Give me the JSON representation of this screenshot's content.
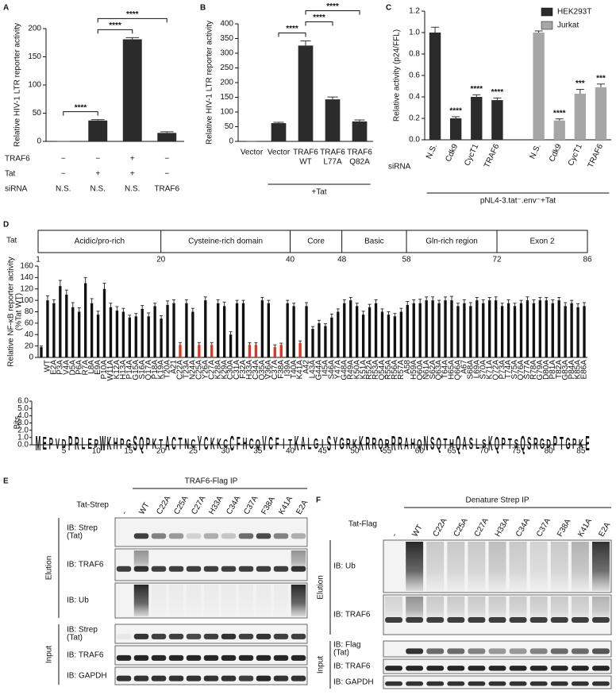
{
  "chart_data": [
    {
      "type": "bar",
      "panel": "A",
      "ylabel": "Relative HIV-1 LTR reporter activity",
      "values": [
        0,
        37,
        181,
        15
      ],
      "errors": [
        0,
        1.5,
        3,
        2
      ],
      "color": "#2b2b2b",
      "ylim": [
        0,
        200
      ],
      "yticks": [
        0,
        50,
        100,
        150,
        200
      ],
      "rows": [
        {
          "label": "TRAF6",
          "values": [
            "−",
            "−",
            "+",
            "−"
          ]
        },
        {
          "label": "Tat",
          "values": [
            "−",
            "+",
            "+",
            "−"
          ]
        },
        {
          "label": "siRNA",
          "values": [
            "N.S.",
            "N.S.",
            "N.S.",
            "TRAF6"
          ]
        }
      ],
      "significance": [
        {
          "from": 0,
          "to": 1,
          "label": "****"
        },
        {
          "from": 1,
          "to": 2,
          "label": "****"
        },
        {
          "from": 1,
          "to": 3,
          "label": "****"
        }
      ]
    },
    {
      "type": "bar",
      "panel": "B",
      "ylabel": "Relative HIV-1 LTR reporter activity",
      "categories": [
        [
          "Vector"
        ],
        [
          "Vector"
        ],
        [
          "TRAF6",
          "WT"
        ],
        [
          "TRAF6",
          "L77A"
        ],
        [
          "TRAF6",
          "Q82A"
        ]
      ],
      "values": [
        0,
        62,
        326,
        143,
        68
      ],
      "errors": [
        0,
        3,
        16,
        8,
        5
      ],
      "color": "#2b2b2b",
      "ylim": [
        0,
        400
      ],
      "yticks": [
        0,
        50,
        100,
        150,
        200,
        250,
        300,
        350,
        400
      ],
      "group_label": {
        "label": "+Tat",
        "from": 1,
        "to": 4
      },
      "significance": [
        {
          "from": 1,
          "to": 2,
          "label": "****"
        },
        {
          "from": 2,
          "to": 3,
          "label": "****"
        },
        {
          "from": 2,
          "to": 4,
          "label": "****"
        }
      ]
    },
    {
      "type": "bar",
      "panel": "C",
      "ylabel": "Relative activity (p24/FFL)",
      "categories": [
        "N.S.",
        "Cdk9",
        "CycT1",
        "TRAF6",
        "N.S.",
        "Cdk9",
        "CycT1",
        "TRAF6"
      ],
      "row_label": "siRNA",
      "series": [
        {
          "name": "HEK293T",
          "color": "#2b2b2b",
          "values": [
            1.0,
            0.2,
            0.4,
            0.37,
            null,
            null,
            null,
            null
          ],
          "errors": [
            0.05,
            0.015,
            0.02,
            0.02,
            null,
            null,
            null,
            null
          ],
          "labels": [
            null,
            "****",
            "****",
            "****",
            null,
            null,
            null,
            null
          ]
        },
        {
          "name": "Jurkat",
          "color": "#a6a6a6",
          "values": [
            null,
            null,
            null,
            null,
            1.0,
            0.18,
            0.43,
            0.49
          ],
          "errors": [
            null,
            null,
            null,
            null,
            0.015,
            0.015,
            0.04,
            0.03
          ],
          "labels": [
            null,
            null,
            null,
            null,
            null,
            "****",
            "***",
            "***"
          ]
        }
      ],
      "ylim": [
        0,
        1.2
      ],
      "yticks": [
        {
          "value": 0,
          "label": "0.0"
        },
        0.2,
        0.4,
        0.6,
        0.8,
        {
          "value": 1,
          "label": "1.0"
        },
        1.2
      ],
      "legend": "top-right",
      "group_label": {
        "label": "pNL4-3.tat⁻.env⁻+Tat",
        "from": 0,
        "to": 7
      }
    },
    {
      "type": "bar",
      "panel": "D",
      "ylabel": [
        "Relative NF-κB reporter activity",
        "(%Tat WT)"
      ],
      "color": "#111111",
      "highlight_color": "#e8301f",
      "highlight": [
        22,
        25,
        27,
        33,
        34,
        37,
        38,
        41
      ],
      "categories": [
        null,
        "WT",
        "E2A",
        "P3A",
        "V4A",
        "D5A",
        "P6A",
        "R7A",
        "L8A",
        "E9A",
        "P10A",
        "W11A",
        "K12A",
        "H13A",
        "P14A",
        "G15A",
        "S16A",
        "Q17A",
        "P18A",
        "K19A",
        "T20A",
        "A21",
        "C22A",
        "T23A",
        "N24A",
        "C25A",
        "Y26A",
        "C27A",
        "K28A",
        "K29A",
        "C30A",
        "C31A",
        "F32A",
        "H33A",
        "C34A",
        "Q35A",
        "V36A",
        "C37A",
        "F38A",
        "I39A",
        "T40A",
        "K41A",
        "A42",
        "L43A",
        "G44A",
        "I45A",
        "S46A",
        "Y47A",
        "G48A",
        "R49A",
        "K50A",
        "K51A",
        "R52A",
        "R53A",
        "Q54A",
        "R55A",
        "R56A",
        "R57A",
        "A58",
        "H59A",
        "Q60A",
        "N61A",
        "S62A",
        "Q63A",
        "T64A",
        "H65A",
        "Q66A",
        "A67",
        "S68A",
        "L69A",
        "S70A",
        "K71A",
        "Q72A",
        "P73A",
        "T74A",
        "S75A",
        "Q76A",
        "S77A",
        "R78A",
        "G79A",
        "D80A",
        "P81A",
        "T82A",
        "G83A",
        "P84A",
        "K85A",
        "E86A"
      ],
      "values": [
        18,
        100,
        95,
        125,
        110,
        88,
        80,
        130,
        95,
        75,
        120,
        88,
        82,
        80,
        70,
        72,
        85,
        72,
        90,
        68,
        92,
        95,
        22,
        95,
        80,
        22,
        100,
        22,
        95,
        90,
        40,
        95,
        95,
        22,
        22,
        100,
        95,
        18,
        22,
        95,
        90,
        25,
        90,
        50,
        60,
        55,
        70,
        80,
        95,
        100,
        90,
        75,
        88,
        95,
        80,
        75,
        72,
        80,
        92,
        95,
        95,
        100,
        100,
        95,
        100,
        100,
        90,
        95,
        90,
        100,
        95,
        100,
        100,
        90,
        95,
        90,
        95,
        100,
        95,
        100,
        100,
        95,
        100,
        90,
        95,
        88,
        90
      ],
      "errors": [
        2,
        8,
        6,
        10,
        8,
        8,
        7,
        10,
        8,
        6,
        10,
        7,
        7,
        6,
        4,
        5,
        6,
        6,
        5,
        5,
        7,
        6,
        4,
        6,
        6,
        4,
        6,
        4,
        6,
        7,
        5,
        5,
        5,
        4,
        4,
        5,
        5,
        4,
        3,
        5,
        5,
        4,
        6,
        4,
        5,
        4,
        6,
        5,
        6,
        5,
        5,
        6,
        5,
        6,
        5,
        5,
        5,
        6,
        6,
        6,
        7,
        6,
        6,
        5,
        6,
        7,
        5,
        6,
        6,
        5,
        6,
        5,
        6,
        5,
        6,
        5,
        5,
        6,
        6,
        5,
        5,
        6,
        5,
        6,
        5,
        6,
        6
      ],
      "ylim": [
        0,
        160
      ],
      "yticks": [
        0,
        20,
        40,
        60,
        80,
        100,
        120,
        140,
        160
      ]
    }
  ],
  "tat_domain": {
    "label": "Tat",
    "domains": [
      "Acidic/pro-rich",
      "Cysteine-rich domain",
      "Core",
      "Basic",
      "Gln-rich region",
      "Exon 2"
    ],
    "positions": [
      1,
      20,
      40,
      48,
      58,
      72,
      86
    ]
  },
  "sequence_logo": {
    "ylabel": "Bits",
    "ylim": [
      0,
      6
    ],
    "yticks": [
      {
        "value": 0,
        "label": "0.0"
      },
      {
        "value": 1,
        "label": "1.0"
      },
      {
        "value": 2,
        "label": "2.0"
      },
      {
        "value": 3,
        "label": "3.0"
      },
      {
        "value": 4,
        "label": "4.0"
      },
      {
        "value": 5,
        "label": "5.0"
      },
      {
        "value": 6,
        "label": "6.0"
      }
    ],
    "xticks": [
      5,
      10,
      15,
      20,
      25,
      30,
      35,
      40,
      45,
      50,
      55,
      60,
      65,
      70,
      75,
      80,
      85
    ],
    "sequence": "MEPVDPRLEPWKHPGSQPKTACTNCYCKKCCFHCQVCFITKALGISYGRKKRRQRRRAHQNSQTHQASLSKQPTSQSRGDPTGPKE"
  },
  "blots": [
    {
      "panel": "E",
      "title": "TRAF6-Flag IP",
      "lane_header": "Tat-Strep",
      "lanes": [
        "-",
        "WT",
        "C22A",
        "C25A",
        "C27A",
        "H33A",
        "C34A",
        "C37A",
        "F38A",
        "K41A",
        "E2A"
      ],
      "highlight_lanes": [
        2,
        3,
        4,
        5,
        6,
        7,
        8,
        9
      ],
      "highlight_color": "#e8301f",
      "sections": [
        {
          "label": "Elution",
          "blots": [
            [
              "IB: Strep",
              "(Tat)"
            ],
            [
              "IB: TRAF6"
            ],
            [
              "IB: Ub"
            ]
          ]
        },
        {
          "label": "Input",
          "blots": [
            [
              "IB: Strep",
              "(Tat)"
            ],
            [
              "IB: TRAF6"
            ],
            [
              "IB: GAPDH"
            ]
          ]
        }
      ]
    },
    {
      "panel": "F",
      "title": "Denature Strep IP",
      "lane_header": "Tat-Flag",
      "lanes": [
        "-",
        "WT",
        "C22A",
        "C25A",
        "C27A",
        "H33A",
        "C34A",
        "C37A",
        "F38A",
        "K41A",
        "E2A"
      ],
      "highlight_lanes": [
        2,
        3,
        4,
        5,
        6,
        7,
        8,
        9
      ],
      "highlight_color": "#e8301f",
      "sections": [
        {
          "label": "Elution",
          "blots": [
            [
              "IB: Ub"
            ],
            [
              "IB: TRAF6"
            ]
          ]
        },
        {
          "label": "Input",
          "blots": [
            [
              "IB: Flag",
              "(Tat)"
            ],
            [
              "IB: TRAF6"
            ],
            [
              "IB: GAPDH"
            ]
          ]
        }
      ]
    }
  ]
}
